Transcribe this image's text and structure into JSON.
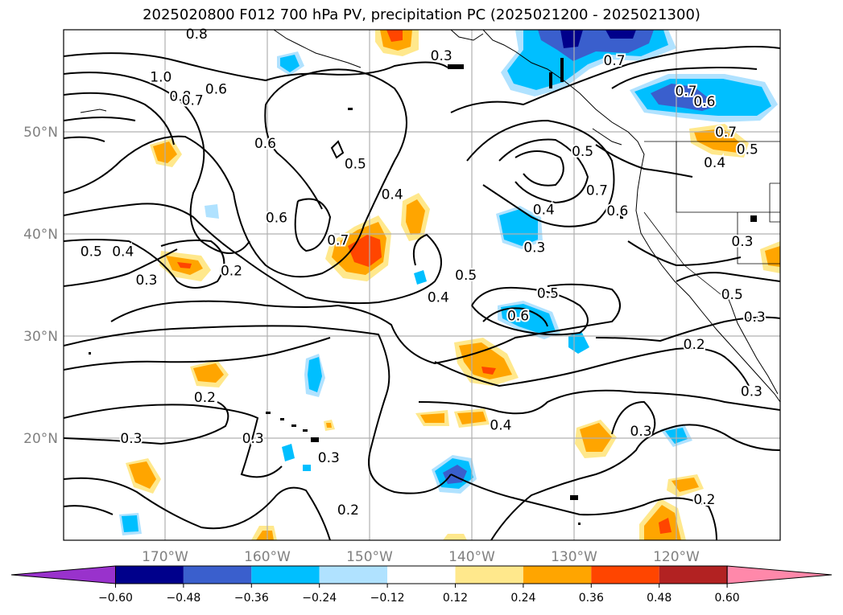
{
  "title": "2025020800 F012 700 hPa PV, precipitation PC (2025021200 - 2025021300)",
  "map": {
    "lon_ticks": [
      "170°W",
      "160°W",
      "150°W",
      "140°W",
      "130°W",
      "120°W"
    ],
    "lat_ticks": [
      "20°N",
      "30°N",
      "40°N",
      "50°N"
    ],
    "grid": true,
    "contour_labels": [
      {
        "text": "0.8",
        "lon": -167,
        "lat": 59.6
      },
      {
        "text": "1.0",
        "lon": -170.5,
        "lat": 55.4
      },
      {
        "text": "0.8",
        "lon": -168.6,
        "lat": 53.5
      },
      {
        "text": "0.7",
        "lon": -167.4,
        "lat": 53.1
      },
      {
        "text": "0.6",
        "lon": -165.1,
        "lat": 54.2
      },
      {
        "text": "0.6",
        "lon": -160.3,
        "lat": 48.9
      },
      {
        "text": "0.6",
        "lon": -159.2,
        "lat": 41.6
      },
      {
        "text": "0.5",
        "lon": -151.5,
        "lat": 46.9
      },
      {
        "text": "0.4",
        "lon": -147.9,
        "lat": 43.9
      },
      {
        "text": "0.3",
        "lon": -143.1,
        "lat": 57.5
      },
      {
        "text": "0.5",
        "lon": -177.3,
        "lat": 38.3
      },
      {
        "text": "0.4",
        "lon": -174.2,
        "lat": 38.3
      },
      {
        "text": "0.3",
        "lon": -171.9,
        "lat": 35.5
      },
      {
        "text": "0.2",
        "lon": -163.6,
        "lat": 36.4
      },
      {
        "text": "0.7",
        "lon": -153.2,
        "lat": 39.4
      },
      {
        "text": "0.5",
        "lon": -140.7,
        "lat": 36.0
      },
      {
        "text": "0.4",
        "lon": -143.4,
        "lat": 33.8
      },
      {
        "text": "0.2",
        "lon": -166.2,
        "lat": 24.0
      },
      {
        "text": "0.3",
        "lon": -173.4,
        "lat": 20.0
      },
      {
        "text": "0.3",
        "lon": -161.5,
        "lat": 20.0
      },
      {
        "text": "0.3",
        "lon": -154.1,
        "lat": 18.1
      },
      {
        "text": "0.2",
        "lon": -152.2,
        "lat": 13.0
      },
      {
        "text": "0.4",
        "lon": -137.3,
        "lat": 21.3
      },
      {
        "text": "0.5",
        "lon": -129.3,
        "lat": 48.1
      },
      {
        "text": "0.7",
        "lon": -127.9,
        "lat": 44.3
      },
      {
        "text": "0.6",
        "lon": -125.9,
        "lat": 42.3
      },
      {
        "text": "0.4",
        "lon": -133.1,
        "lat": 42.4
      },
      {
        "text": "0.3",
        "lon": -134.0,
        "lat": 38.7
      },
      {
        "text": "0.5",
        "lon": -132.7,
        "lat": 34.2
      },
      {
        "text": "0.6",
        "lon": -135.6,
        "lat": 32.0
      },
      {
        "text": "0.7",
        "lon": -126.2,
        "lat": 57.0
      },
      {
        "text": "0.7",
        "lon": -119.2,
        "lat": 54.0
      },
      {
        "text": "0.6",
        "lon": -117.4,
        "lat": 53.0
      },
      {
        "text": "0.7",
        "lon": -115.3,
        "lat": 50.0
      },
      {
        "text": "0.5",
        "lon": -113.2,
        "lat": 48.3
      },
      {
        "text": "0.4",
        "lon": -116.4,
        "lat": 47.0
      },
      {
        "text": "0.3",
        "lon": -113.7,
        "lat": 39.3
      },
      {
        "text": "0.5",
        "lon": -114.7,
        "lat": 34.1
      },
      {
        "text": "0.3",
        "lon": -112.5,
        "lat": 31.9
      },
      {
        "text": "0.2",
        "lon": -118.4,
        "lat": 29.2
      },
      {
        "text": "0.3",
        "lon": -112.8,
        "lat": 24.6
      },
      {
        "text": "0.3",
        "lon": -123.6,
        "lat": 20.7
      },
      {
        "text": "0.2",
        "lon": -117.4,
        "lat": 14.0
      }
    ]
  },
  "colorbar": {
    "levels": [
      "−0.60",
      "−0.48",
      "−0.36",
      "−0.24",
      "−0.12",
      "0.12",
      "0.24",
      "0.36",
      "0.48",
      "0.60"
    ],
    "colors": [
      "#9932cc",
      "#00008b",
      "#3a5fcd",
      "#00bfff",
      "#b0e2ff",
      "#ffffff",
      "#ffe88c",
      "#ffa500",
      "#ff4500",
      "#b22222",
      "#ff88aa"
    ]
  }
}
